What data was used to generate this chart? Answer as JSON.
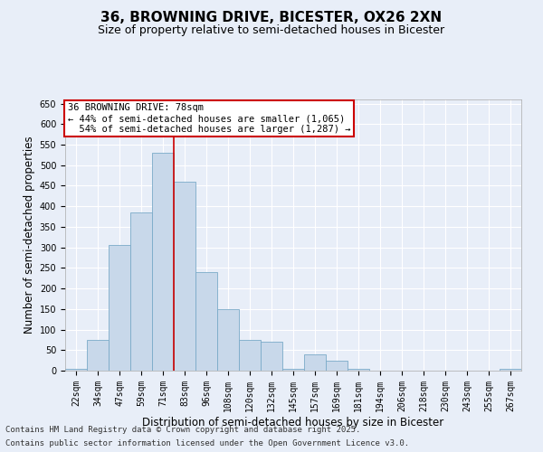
{
  "title_line1": "36, BROWNING DRIVE, BICESTER, OX26 2XN",
  "title_line2": "Size of property relative to semi-detached houses in Bicester",
  "xlabel": "Distribution of semi-detached houses by size in Bicester",
  "ylabel": "Number of semi-detached properties",
  "bar_color": "#c8d8ea",
  "bar_edge_color": "#7aaac8",
  "background_color": "#e8eef8",
  "plot_bg_color": "#e8eef8",
  "grid_color": "#ffffff",
  "categories": [
    "22sqm",
    "34sqm",
    "47sqm",
    "59sqm",
    "71sqm",
    "83sqm",
    "96sqm",
    "108sqm",
    "120sqm",
    "132sqm",
    "145sqm",
    "157sqm",
    "169sqm",
    "181sqm",
    "194sqm",
    "206sqm",
    "218sqm",
    "230sqm",
    "243sqm",
    "255sqm",
    "267sqm"
  ],
  "values": [
    5,
    75,
    305,
    385,
    530,
    460,
    240,
    150,
    75,
    70,
    5,
    40,
    25,
    5,
    0,
    0,
    0,
    0,
    0,
    0,
    5
  ],
  "vline_x_idx": 4,
  "vline_color": "#cc0000",
  "property_label": "36 BROWNING DRIVE: 78sqm",
  "smaller_pct": "44% of semi-detached houses are smaller (1,065)",
  "larger_pct": "54% of semi-detached houses are larger (1,287)",
  "ylim": [
    0,
    660
  ],
  "yticks": [
    0,
    50,
    100,
    150,
    200,
    250,
    300,
    350,
    400,
    450,
    500,
    550,
    600,
    650
  ],
  "footer_line1": "Contains HM Land Registry data © Crown copyright and database right 2025.",
  "footer_line2": "Contains public sector information licensed under the Open Government Licence v3.0.",
  "title_fontsize": 11,
  "subtitle_fontsize": 9,
  "axis_label_fontsize": 8.5,
  "tick_fontsize": 7,
  "annotation_fontsize": 7.5,
  "footer_fontsize": 6.5
}
